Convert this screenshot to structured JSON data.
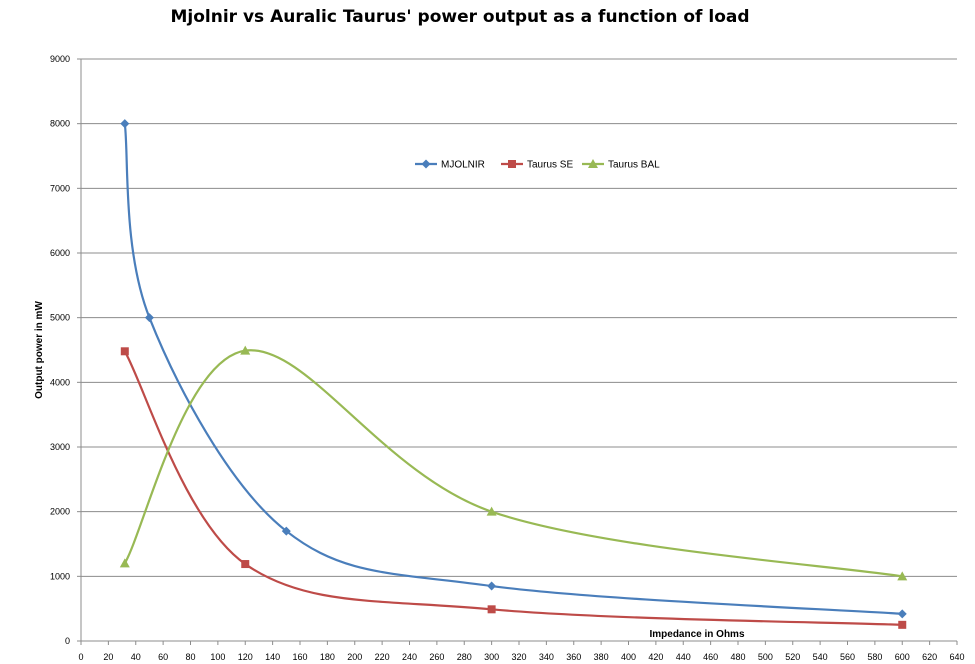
{
  "chart_data": {
    "type": "line",
    "title": "Mjolnir vs Auralic Taurus' power output as a function of load",
    "xlabel": "Impedance in Ohms",
    "ylabel": "Output power in mW",
    "xlim": [
      0,
      640
    ],
    "ylim": [
      0,
      9000
    ],
    "x_ticks": [
      "0",
      "20",
      "40",
      "60",
      "80",
      "100",
      "120",
      "140",
      "160",
      "180",
      "200",
      "220",
      "240",
      "260",
      "280",
      "300",
      "320",
      "340",
      "360",
      "380",
      "400",
      "420",
      "440",
      "460",
      "480",
      "500",
      "520",
      "540",
      "560",
      "580",
      "600",
      "620",
      "640"
    ],
    "y_ticks": [
      "0",
      "1000",
      "2000",
      "3000",
      "4000",
      "5000",
      "6000",
      "7000",
      "8000",
      "9000"
    ],
    "grid": "horizontal",
    "smooth": true,
    "legend_position": "top-center",
    "series": [
      {
        "name": "MJOLNIR",
        "color": "#4a7ebb",
        "marker": "diamond",
        "x": [
          32,
          50,
          150,
          300,
          600
        ],
        "y": [
          8000,
          5000,
          1700,
          850,
          420
        ]
      },
      {
        "name": "Taurus SE",
        "color": "#be4b48",
        "marker": "square",
        "x": [
          32,
          120,
          300,
          600
        ],
        "y": [
          4480,
          1190,
          490,
          250
        ]
      },
      {
        "name": "Taurus BAL",
        "color": "#98b954",
        "marker": "triangle",
        "x": [
          32,
          120,
          300,
          600
        ],
        "y": [
          1200,
          4490,
          2000,
          1000
        ]
      }
    ]
  }
}
